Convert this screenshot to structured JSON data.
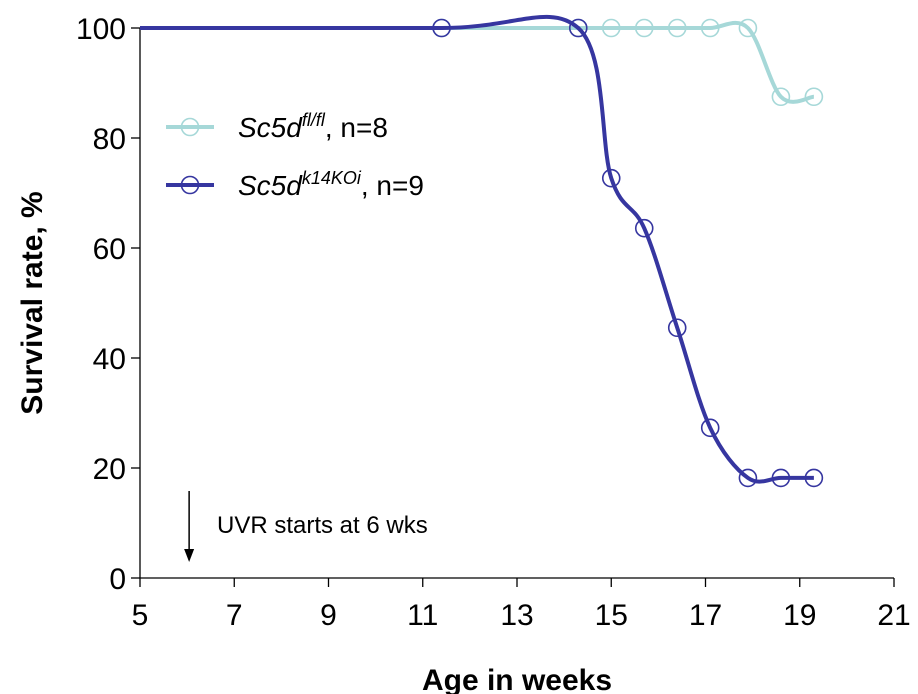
{
  "chart_data": {
    "type": "line",
    "title": "",
    "xlabel": "Age in weeks",
    "ylabel": "Survival rate, %",
    "xlim": [
      5,
      21
    ],
    "ylim": [
      0,
      100
    ],
    "x_ticks": [
      5,
      7,
      9,
      11,
      13,
      15,
      17,
      19,
      21
    ],
    "y_ticks": [
      0,
      20,
      40,
      60,
      80,
      100
    ],
    "grid": false,
    "legend_position": "upper-left",
    "series": [
      {
        "name_base": "Sc5d",
        "name_sup": "fl/fl",
        "name_suffix": ", n=8",
        "color": "#a6d8d8",
        "x": [
          5,
          11.4,
          14.3,
          15.0,
          15.7,
          16.4,
          17.1,
          17.9,
          18.6,
          19.3
        ],
        "y": [
          100,
          100,
          100,
          100,
          100,
          100,
          100,
          100,
          87.5,
          87.5
        ],
        "markers_start_index": 1
      },
      {
        "name_base": "Sc5d",
        "name_sup": "k14KOi",
        "name_suffix": ", n=9",
        "color": "#3636a0",
        "x": [
          5,
          11.4,
          14.3,
          15.0,
          15.7,
          16.4,
          17.1,
          17.9,
          18.6,
          19.3
        ],
        "y": [
          100,
          100,
          100,
          72.7,
          63.6,
          45.5,
          27.3,
          18.2,
          18.2,
          18.2
        ],
        "markers_start_index": 1
      }
    ],
    "annotation": {
      "text": "UVR starts at 6 wks",
      "x": 6
    }
  }
}
